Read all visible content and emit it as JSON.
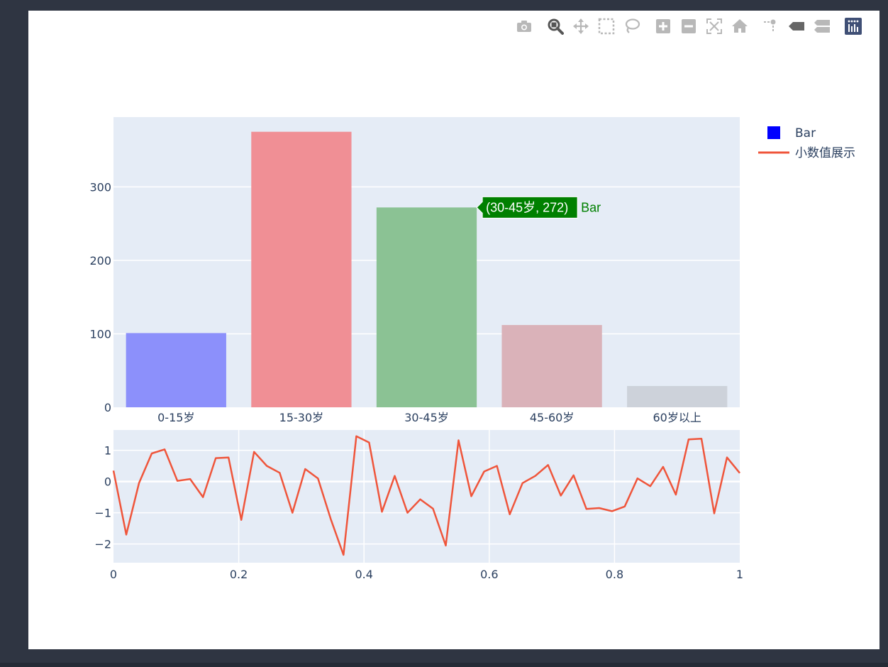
{
  "modebar": {
    "buttons": [
      {
        "name": "camera-icon",
        "title": "Download plot as a png"
      },
      {
        "name": "zoom-icon",
        "title": "Zoom"
      },
      {
        "name": "pan-icon",
        "title": "Pan"
      },
      {
        "name": "box-select-icon",
        "title": "Box Select"
      },
      {
        "name": "lasso-select-icon",
        "title": "Lasso Select"
      },
      {
        "name": "zoom-in-icon",
        "title": "Zoom in"
      },
      {
        "name": "zoom-out-icon",
        "title": "Zoom out"
      },
      {
        "name": "autoscale-icon",
        "title": "Autoscale"
      },
      {
        "name": "reset-axes-icon",
        "title": "Reset axes"
      },
      {
        "name": "spike-lines-icon",
        "title": "Toggle Spike Lines"
      },
      {
        "name": "hover-closest-icon",
        "title": "Show closest data on hover"
      },
      {
        "name": "hover-compare-icon",
        "title": "Compare data on hover"
      },
      {
        "name": "plotly-logo-icon",
        "title": "Produced with Plotly"
      }
    ]
  },
  "colors": {
    "plot_bg": "#e5ecf6",
    "grid": "#ffffff",
    "tick_text": "#2a3f5f",
    "line": "#ef553b",
    "hover_bg": "#008000"
  },
  "chart_data": [
    {
      "type": "bar",
      "categories": [
        "0-15岁",
        "15-30岁",
        "30-45岁",
        "45-60岁",
        "60岁以上"
      ],
      "values": [
        101,
        375,
        272,
        112,
        29
      ],
      "colors": [
        "#8c90fb",
        "#f08f95",
        "#8bc294",
        "#dab2b9",
        "#cdd2da"
      ],
      "series_name": "Bar",
      "legend_color": "#0000ff",
      "ylim": [
        0,
        395
      ],
      "yticks": [
        0,
        100,
        200,
        300
      ],
      "grid": true,
      "hover": {
        "text": "(30-45岁, 272)",
        "name": "Bar",
        "category": "30-45岁",
        "value": 272
      }
    },
    {
      "type": "line",
      "series_name": "小数值展示",
      "x": [
        0,
        0.0204,
        0.0408,
        0.0612,
        0.0816,
        0.102,
        0.1224,
        0.1429,
        0.1633,
        0.1837,
        0.2041,
        0.2245,
        0.2449,
        0.2653,
        0.2857,
        0.3061,
        0.3265,
        0.3469,
        0.3673,
        0.3878,
        0.4082,
        0.4286,
        0.449,
        0.4694,
        0.4898,
        0.5102,
        0.5306,
        0.551,
        0.5714,
        0.5918,
        0.6122,
        0.6327,
        0.6531,
        0.6735,
        0.6939,
        0.7143,
        0.7347,
        0.7551,
        0.7755,
        0.7959,
        0.8163,
        0.8367,
        0.8571,
        0.8776,
        0.898,
        0.9184,
        0.9388,
        0.9592,
        0.9796,
        1.0
      ],
      "y": [
        0.35,
        -1.7,
        -0.05,
        0.9,
        1.03,
        0.02,
        0.08,
        -0.5,
        0.75,
        0.77,
        -1.23,
        0.95,
        0.5,
        0.28,
        -1.0,
        0.4,
        0.1,
        -1.2,
        -2.35,
        1.45,
        1.25,
        -0.97,
        0.18,
        -1.0,
        -0.57,
        -0.87,
        -2.05,
        1.32,
        -0.47,
        0.32,
        0.5,
        -1.05,
        -0.05,
        0.18,
        0.53,
        -0.45,
        0.2,
        -0.88,
        -0.85,
        -0.95,
        -0.8,
        0.1,
        -0.15,
        0.47,
        -0.42,
        1.35,
        1.37,
        -1.02,
        0.77,
        0.27
      ],
      "xlim": [
        0,
        1
      ],
      "ylim": [
        -2.6,
        1.65
      ],
      "xticks": [
        0,
        0.2,
        0.4,
        0.6,
        0.8,
        1
      ],
      "xtick_labels": [
        "0",
        "0.2",
        "0.4",
        "0.6",
        "0.8",
        "1"
      ],
      "yticks": [
        -2,
        -1,
        0,
        1
      ],
      "ytick_labels": [
        "−2",
        "−1",
        "0",
        "1"
      ],
      "grid": true
    }
  ],
  "legend": {
    "placement": "top-right",
    "items": [
      {
        "label": "Bar",
        "symbol": "square",
        "color": "#0000ff"
      },
      {
        "label": "小数值展示",
        "symbol": "line",
        "color": "#ef553b"
      }
    ]
  }
}
